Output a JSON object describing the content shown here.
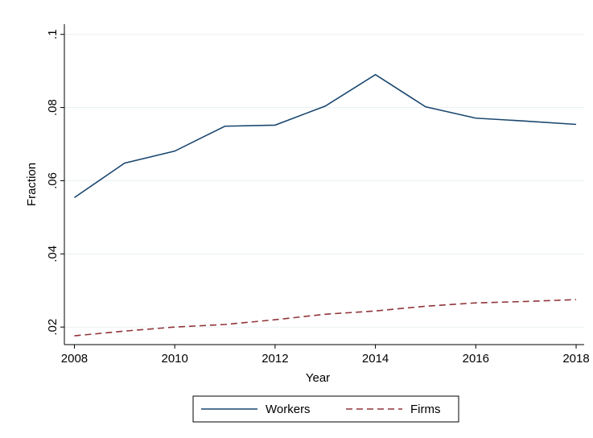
{
  "chart_data": {
    "type": "line",
    "x_label": "Year",
    "y_label": "Fraction",
    "x": [
      2008,
      2009,
      2010,
      2011,
      2012,
      2013,
      2014,
      2015,
      2016,
      2017,
      2018
    ],
    "series": [
      {
        "name": "Workers",
        "color": "#1a476f",
        "style": "solid",
        "values": [
          0.0554,
          0.0648,
          0.0681,
          0.0749,
          0.0752,
          0.0804,
          0.089,
          0.0802,
          0.0771,
          0.0763,
          0.0754
        ]
      },
      {
        "name": "Firms",
        "color": "#90353b",
        "style": "dashed",
        "values": [
          0.0176,
          0.0189,
          0.02,
          0.0207,
          0.022,
          0.0235,
          0.0244,
          0.0257,
          0.0266,
          0.027,
          0.0275
        ]
      }
    ],
    "xlim": [
      2007.8,
      2018.16
    ],
    "xticks": [
      2008,
      2010,
      2012,
      2014,
      2016,
      2018
    ],
    "ylim": [
      0.0152,
      0.1028
    ],
    "yticks": [
      {
        "value": 0.02,
        "label": ".02"
      },
      {
        "value": 0.04,
        "label": ".04"
      },
      {
        "value": 0.06,
        "label": ".06"
      },
      {
        "value": 0.08,
        "label": ".08"
      },
      {
        "value": 0.1,
        "label": ".1"
      }
    ],
    "grid": true,
    "legend": "bottom"
  }
}
